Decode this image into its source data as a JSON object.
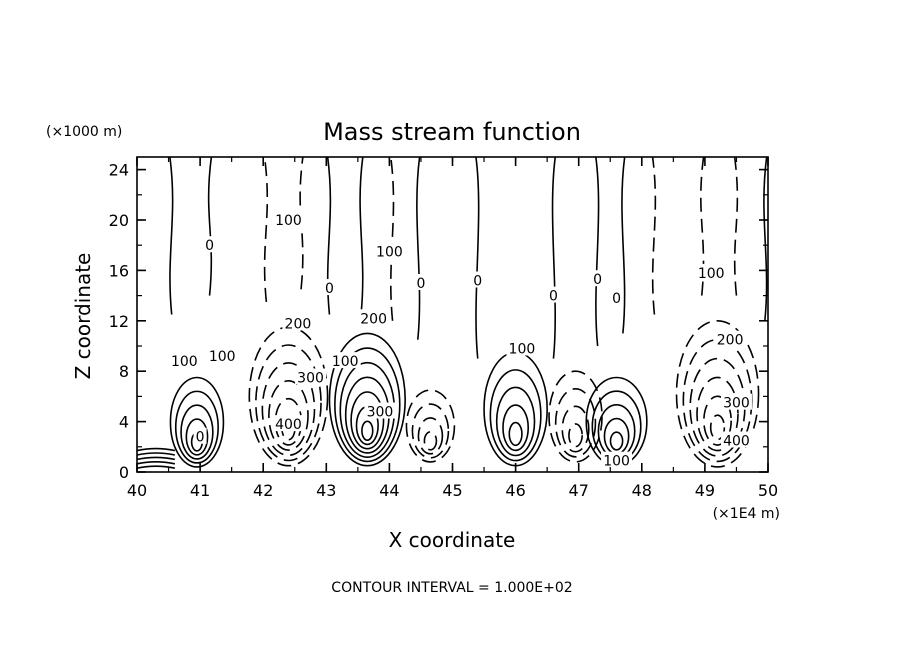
{
  "chart_data": {
    "type": "contour",
    "title": "Mass stream function",
    "xlabel": "X coordinate",
    "ylabel": "Z coordinate",
    "x_unit": "(×1E4 m)",
    "y_unit": "(×1000 m)",
    "xlim": [
      40,
      50
    ],
    "ylim": [
      0,
      25
    ],
    "x_ticks": [
      40,
      41,
      42,
      43,
      44,
      45,
      46,
      47,
      48,
      49,
      50
    ],
    "y_ticks": [
      0,
      4,
      8,
      12,
      16,
      20,
      24
    ],
    "footer": "CONTOUR INTERVAL = 1.000E+02",
    "contour_interval": 100,
    "contour_labels": [
      {
        "text": "0",
        "x": 41.15,
        "y": 18.0
      },
      {
        "text": "100",
        "x": 42.4,
        "y": 20.0
      },
      {
        "text": "100",
        "x": 44.0,
        "y": 17.5
      },
      {
        "text": "0",
        "x": 43.05,
        "y": 14.6
      },
      {
        "text": "0",
        "x": 44.5,
        "y": 15.0
      },
      {
        "text": "0",
        "x": 45.4,
        "y": 15.2
      },
      {
        "text": "0",
        "x": 46.6,
        "y": 14.0
      },
      {
        "text": "0",
        "x": 47.3,
        "y": 15.3
      },
      {
        "text": "0",
        "x": 47.6,
        "y": 13.8
      },
      {
        "text": "100",
        "x": 49.1,
        "y": 15.8
      },
      {
        "text": "200",
        "x": 42.55,
        "y": 11.8
      },
      {
        "text": "200",
        "x": 43.75,
        "y": 12.2
      },
      {
        "text": "200",
        "x": 49.4,
        "y": 10.5
      },
      {
        "text": "100",
        "x": 40.75,
        "y": 8.8
      },
      {
        "text": "100",
        "x": 41.35,
        "y": 9.2
      },
      {
        "text": "100",
        "x": 43.3,
        "y": 8.8
      },
      {
        "text": "100",
        "x": 46.1,
        "y": 9.8
      },
      {
        "text": "300",
        "x": 42.75,
        "y": 7.5
      },
      {
        "text": "300",
        "x": 43.85,
        "y": 4.8
      },
      {
        "text": "300",
        "x": 49.5,
        "y": 5.5
      },
      {
        "text": "400",
        "x": 42.4,
        "y": 3.8
      },
      {
        "text": "400",
        "x": 49.5,
        "y": 2.5
      },
      {
        "text": "0",
        "x": 41.0,
        "y": 2.8
      },
      {
        "text": "100",
        "x": 47.6,
        "y": 0.9
      }
    ]
  }
}
